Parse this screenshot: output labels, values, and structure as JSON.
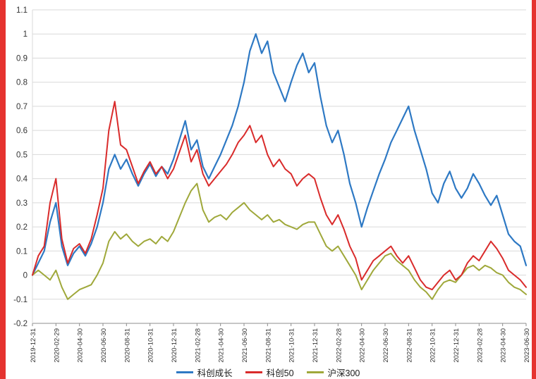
{
  "page": {
    "background": "#ffffff",
    "edge_strip_color": "#e5332f",
    "gridline_color": "#d9d9d9",
    "axis_color": "#8c8c8c",
    "label_color": "#333333"
  },
  "chart_data": {
    "type": "line",
    "title": "",
    "xlabel": "",
    "ylabel": "",
    "grid": "horizontal",
    "legend_position": "bottom",
    "ylim": [
      -0.2,
      1.1
    ],
    "y_ticks": [
      -0.2,
      -0.1,
      0,
      0.1,
      0.2,
      0.3,
      0.4,
      0.5,
      0.6,
      0.7,
      0.8,
      0.9,
      1,
      1.1
    ],
    "y_tick_labels": [
      "-0.2",
      "-0.1",
      "0",
      "0.1",
      "0.2",
      "0.3",
      "0.4",
      "0.5",
      "0.6",
      "0.7",
      "0.8",
      "0.9",
      "1",
      "1.1"
    ],
    "x_range": [
      0,
      42
    ],
    "x_ticks": [
      0,
      2,
      4,
      6,
      8,
      10,
      12,
      14,
      16,
      18,
      20,
      22,
      24,
      26,
      28,
      30,
      32,
      34,
      36,
      38,
      40,
      42
    ],
    "x_tick_labels": [
      "2019-12-31",
      "2020-02-29",
      "2020-04-30",
      "2020-06-30",
      "2020-08-31",
      "2020-10-31",
      "2020-12-31",
      "2021-02-28",
      "2021-04-30",
      "2021-06-30",
      "2021-08-31",
      "2021-10-31",
      "2021-12-31",
      "2022-02-28",
      "2022-04-30",
      "2022-06-30",
      "2022-08-31",
      "2022-10-31",
      "2022-12-31",
      "2023-02-28",
      "2023-04-30",
      "2023-06-30"
    ],
    "x_unit": "months-since-2019-12-31",
    "series": [
      {
        "name": "科创成长",
        "slug": "kechuang-growth",
        "color": "#2e79c4",
        "stroke_width": 2.2,
        "x_step": 0.5,
        "values": [
          0.0,
          0.05,
          0.1,
          0.22,
          0.3,
          0.12,
          0.04,
          0.09,
          0.12,
          0.08,
          0.13,
          0.2,
          0.3,
          0.44,
          0.5,
          0.44,
          0.48,
          0.42,
          0.37,
          0.42,
          0.46,
          0.41,
          0.45,
          0.42,
          0.48,
          0.56,
          0.64,
          0.52,
          0.56,
          0.45,
          0.4,
          0.45,
          0.5,
          0.56,
          0.62,
          0.7,
          0.8,
          0.93,
          1.0,
          0.92,
          0.97,
          0.84,
          0.78,
          0.72,
          0.8,
          0.87,
          0.92,
          0.84,
          0.88,
          0.74,
          0.62,
          0.55,
          0.6,
          0.5,
          0.38,
          0.3,
          0.2,
          0.28,
          0.35,
          0.42,
          0.48,
          0.55,
          0.6,
          0.65,
          0.7,
          0.6,
          0.52,
          0.44,
          0.34,
          0.3,
          0.38,
          0.43,
          0.36,
          0.32,
          0.36,
          0.42,
          0.38,
          0.33,
          0.29,
          0.33,
          0.25,
          0.17,
          0.14,
          0.12,
          0.04
        ]
      },
      {
        "name": "科创50",
        "slug": "kechuang-50",
        "color": "#d92b2b",
        "stroke_width": 2,
        "x_step": 0.5,
        "values": [
          0.0,
          0.08,
          0.12,
          0.3,
          0.4,
          0.15,
          0.05,
          0.11,
          0.13,
          0.09,
          0.15,
          0.25,
          0.36,
          0.6,
          0.72,
          0.54,
          0.52,
          0.45,
          0.38,
          0.43,
          0.47,
          0.42,
          0.45,
          0.4,
          0.44,
          0.51,
          0.58,
          0.47,
          0.52,
          0.42,
          0.37,
          0.4,
          0.43,
          0.46,
          0.5,
          0.55,
          0.58,
          0.62,
          0.55,
          0.58,
          0.5,
          0.45,
          0.48,
          0.44,
          0.42,
          0.37,
          0.4,
          0.42,
          0.4,
          0.32,
          0.25,
          0.21,
          0.25,
          0.19,
          0.12,
          0.07,
          -0.02,
          0.02,
          0.06,
          0.08,
          0.1,
          0.12,
          0.08,
          0.05,
          0.08,
          0.03,
          -0.02,
          -0.05,
          -0.06,
          -0.03,
          0.0,
          0.02,
          -0.02,
          0.0,
          0.05,
          0.08,
          0.06,
          0.1,
          0.14,
          0.11,
          0.07,
          0.02,
          0.0,
          -0.02,
          -0.05
        ]
      },
      {
        "name": "沪深300",
        "slug": "hushen-300",
        "color": "#9fa83a",
        "stroke_width": 2,
        "x_step": 0.5,
        "values": [
          0.0,
          0.02,
          0.0,
          -0.02,
          0.02,
          -0.05,
          -0.1,
          -0.08,
          -0.06,
          -0.05,
          -0.04,
          0.0,
          0.05,
          0.14,
          0.18,
          0.15,
          0.17,
          0.14,
          0.12,
          0.14,
          0.15,
          0.13,
          0.16,
          0.14,
          0.18,
          0.24,
          0.3,
          0.35,
          0.38,
          0.27,
          0.22,
          0.24,
          0.25,
          0.23,
          0.26,
          0.28,
          0.3,
          0.27,
          0.25,
          0.23,
          0.25,
          0.22,
          0.23,
          0.21,
          0.2,
          0.19,
          0.21,
          0.22,
          0.22,
          0.17,
          0.12,
          0.1,
          0.12,
          0.08,
          0.04,
          0.0,
          -0.06,
          -0.02,
          0.02,
          0.05,
          0.08,
          0.09,
          0.06,
          0.04,
          0.02,
          -0.02,
          -0.05,
          -0.07,
          -0.1,
          -0.06,
          -0.03,
          -0.02,
          -0.03,
          0.0,
          0.03,
          0.04,
          0.02,
          0.04,
          0.03,
          0.01,
          0.0,
          -0.03,
          -0.05,
          -0.06,
          -0.08
        ]
      }
    ]
  },
  "legend": {
    "items": [
      "科创成长",
      "科创50",
      "沪深300"
    ]
  }
}
